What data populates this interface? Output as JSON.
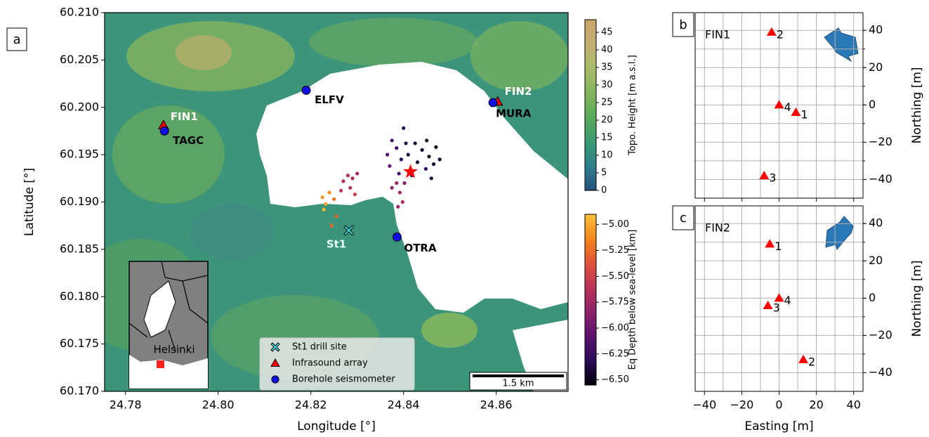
{
  "chart_data": [
    {
      "type": "map",
      "panel_label": "a",
      "xlabel": "Longitude [°]",
      "ylabel": "Latitude [°]",
      "xlim": [
        24.7755,
        24.8755
      ],
      "ylim": [
        60.17,
        60.21
      ],
      "xticks": [
        24.78,
        {
          "value": 24.8,
          "label": "24.80"
        },
        24.82,
        24.84,
        24.86
      ],
      "yticks": [
        {
          "value": 60.17,
          "label": "60.170"
        },
        60.175,
        {
          "value": 60.18,
          "label": "60.180"
        },
        60.185,
        {
          "value": 60.19,
          "label": "60.190"
        },
        60.195,
        {
          "value": 60.2,
          "label": "60.200"
        },
        60.205,
        {
          "value": 60.21,
          "label": "60.210"
        }
      ],
      "series": [
        {
          "name": "St1 drill site",
          "marker": "x",
          "color": "#40e0e0",
          "label_color": "#e8ffff",
          "x": [
            24.8282
          ],
          "y": [
            60.187
          ],
          "labels": [
            "St1"
          ]
        },
        {
          "name": "Infrasound array",
          "marker": "triangle",
          "color": "#ff0000",
          "label_color": "#ffffff",
          "x": [
            24.7882,
            24.8603
          ],
          "y": [
            60.1981,
            60.2006
          ],
          "labels": [
            "FIN1",
            "FIN2"
          ]
        },
        {
          "name": "Borehole seismometer",
          "marker": "circle",
          "color": "#1010e0",
          "label_color": "#000000",
          "x": [
            24.819,
            24.7884,
            24.8593,
            24.8386
          ],
          "y": [
            60.2018,
            60.1975,
            60.2005,
            60.1863
          ],
          "labels": [
            "ELFV",
            "TAGC",
            "MURA",
            "OTRA"
          ]
        }
      ],
      "earthquakes": {
        "x": [
          24.844,
          24.8455,
          24.8425,
          24.8465,
          24.841,
          24.8448,
          24.847,
          24.8395,
          24.843,
          24.8478,
          24.8405,
          24.8385,
          24.846,
          24.8418,
          24.8375,
          24.8365,
          24.839,
          24.837,
          24.84,
          24.845,
          24.8385,
          24.8392,
          24.8398,
          24.8388,
          24.8375,
          24.8402,
          24.827,
          24.828,
          24.829,
          24.8285,
          24.83,
          24.8265,
          24.8295,
          24.8225,
          24.8232,
          24.824,
          24.8228,
          24.825,
          24.8255,
          24.8245
        ],
        "y": [
          60.1955,
          60.1948,
          60.1962,
          60.194,
          60.195,
          60.1935,
          60.1958,
          60.1945,
          60.1942,
          60.1945,
          60.1962,
          60.1957,
          60.1925,
          60.1928,
          60.1965,
          60.195,
          60.193,
          60.1938,
          60.1978,
          60.1965,
          60.192,
          60.191,
          60.19,
          60.1895,
          60.1915,
          60.192,
          60.1922,
          60.1928,
          60.1925,
          60.1915,
          60.193,
          60.1912,
          60.1908,
          60.1905,
          60.1898,
          60.191,
          60.1892,
          60.1903,
          60.1885,
          60.1875
        ],
        "depth": [
          -6.45,
          -6.5,
          -6.4,
          -6.45,
          -6.35,
          -6.3,
          -6.5,
          -6.3,
          -6.4,
          -6.45,
          -6.35,
          -6.25,
          -6.4,
          -6.3,
          -6.2,
          -6.1,
          -6.2,
          -6.05,
          -6.3,
          -6.5,
          -5.8,
          -5.75,
          -5.7,
          -5.75,
          -5.85,
          -5.9,
          -5.65,
          -5.6,
          -5.7,
          -5.65,
          -5.75,
          -5.6,
          -5.5,
          -5.05,
          -5,
          -5.1,
          -4.95,
          -5.2,
          -5.3,
          -5.25
        ]
      },
      "event": {
        "x": 24.8415,
        "y": 60.1932,
        "color": "#ff0000"
      },
      "legend": "lower center",
      "scale_bar": "1.5 km",
      "inset_label": "Helsinki"
    },
    {
      "type": "colorbar",
      "label": "Topo. Height [m a.s.l.]",
      "ylim": [
        0,
        48.6
      ],
      "yticks": [
        0,
        5,
        10,
        15,
        20,
        25,
        30,
        35,
        40,
        45
      ],
      "colormap": [
        "#27507f",
        "#2c7f8c",
        "#3b9a73",
        "#58a95a",
        "#82b65c",
        "#a8bb66",
        "#c4b070",
        "#c9a46a"
      ]
    },
    {
      "type": "colorbar",
      "label": "Eq Depth below sea-level [km]",
      "ylim": [
        -6.55,
        -4.9
      ],
      "yticks": [
        {
          "value": -6.5,
          "label": "−6.50"
        },
        {
          "value": -6.25,
          "label": "−6.25"
        },
        {
          "value": -6,
          "label": "−6.00"
        },
        {
          "value": -5.75,
          "label": "−5.75"
        },
        {
          "value": -5.5,
          "label": "−5.50"
        },
        {
          "value": -5.25,
          "label": "−5.25"
        },
        {
          "value": -5,
          "label": "−5.00"
        }
      ],
      "colormap": [
        "#000004",
        "#2a0b57",
        "#5c126e",
        "#8b226a",
        "#b8325a",
        "#df5238",
        "#f4851a",
        "#f8c23a"
      ]
    },
    {
      "type": "scatter",
      "panel_label": "b",
      "title": "FIN1",
      "ylabel": "Northing [m]",
      "color": "#ff0000",
      "x": [
        9,
        -4,
        -8,
        0
      ],
      "y": [
        -4,
        39,
        -38,
        0
      ],
      "point_labels": [
        "1",
        "2",
        "3",
        "4"
      ],
      "xlim": [
        -45,
        45
      ],
      "ylim": [
        -50,
        49.5
      ],
      "show_xtick_labels": false,
      "xticks": [
        -40,
        -20,
        0,
        20,
        40
      ],
      "yticks": [
        {
          "value": -40,
          "label": "−40"
        },
        {
          "value": -20,
          "label": "−20"
        },
        0,
        20,
        40
      ],
      "minor_ticks": [
        -40,
        -30,
        -20,
        -10,
        0,
        10,
        20,
        30,
        40
      ],
      "grid": true
    },
    {
      "type": "scatter",
      "panel_label": "c",
      "title": "FIN2",
      "xlabel": "Easting [m]",
      "ylabel": "Northing [m]",
      "color": "#ff0000",
      "x": [
        -5,
        13,
        -6,
        0
      ],
      "y": [
        29,
        -33,
        -4,
        0
      ],
      "point_labels": [
        "1",
        "2",
        "3",
        "4"
      ],
      "xlim": [
        -45,
        45
      ],
      "ylim": [
        -50,
        49.5
      ],
      "show_xtick_labels": true,
      "xticks": [
        {
          "value": -40,
          "label": "−40"
        },
        {
          "value": -20,
          "label": "−20"
        },
        0,
        20,
        40
      ],
      "yticks": [
        {
          "value": -40,
          "label": "−40"
        },
        {
          "value": -20,
          "label": "−20"
        },
        0,
        20,
        40
      ],
      "minor_ticks": [
        -40,
        -30,
        -20,
        -10,
        0,
        10,
        20,
        30,
        40
      ],
      "grid": true
    }
  ]
}
